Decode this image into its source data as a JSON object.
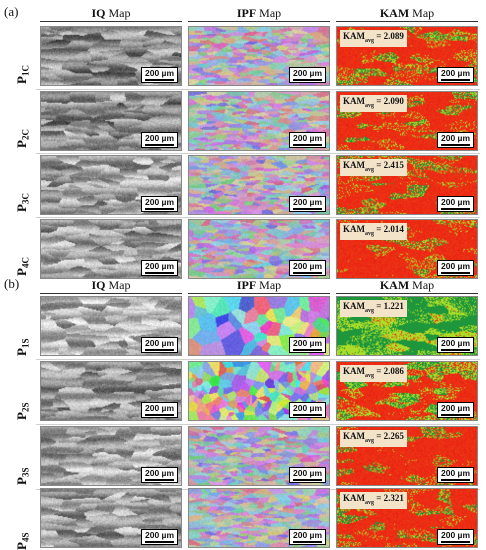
{
  "panels": [
    {
      "label": "(a)",
      "headers": [
        {
          "bold": "IQ",
          "rest": " Map"
        },
        {
          "bold": "IPF",
          "rest": " Map"
        },
        {
          "bold": "KAM",
          "rest": " Map"
        }
      ],
      "rows": [
        {
          "sample": "P",
          "sample_sub": "1C",
          "kam_prefix": "KAM",
          "kam_sub": "avg",
          "kam_value": " = 2.089",
          "scale": "200 µm"
        },
        {
          "sample": "P",
          "sample_sub": "2C",
          "kam_prefix": "KAM",
          "kam_sub": "avg",
          "kam_value": " = 2.090",
          "scale": "200 µm"
        },
        {
          "sample": "P",
          "sample_sub": "3C",
          "kam_prefix": "KAM",
          "kam_sub": "avg",
          "kam_value": " = 2.415",
          "scale": "200 µm"
        },
        {
          "sample": "P",
          "sample_sub": "4C",
          "kam_prefix": "KAM",
          "kam_sub": "avg",
          "kam_value": " = 2.014",
          "scale": "200 µm"
        }
      ]
    },
    {
      "label": "(b)",
      "headers": [
        {
          "bold": "IQ",
          "rest": " Map"
        },
        {
          "bold": "IPF",
          "rest": " Map"
        },
        {
          "bold": "KAM",
          "rest": " Map"
        }
      ],
      "rows": [
        {
          "sample": "P",
          "sample_sub": "1S",
          "kam_prefix": "KAM",
          "kam_sub": "avg",
          "kam_value": " = 1.221",
          "scale": "200 µm"
        },
        {
          "sample": "P",
          "sample_sub": "2S",
          "kam_prefix": "KAM",
          "kam_sub": "avg",
          "kam_value": " = 2.086",
          "scale": "200 µm"
        },
        {
          "sample": "P",
          "sample_sub": "3S",
          "kam_prefix": "KAM",
          "kam_sub": "avg",
          "kam_value": " = 2.265",
          "scale": "200 µm"
        },
        {
          "sample": "P",
          "sample_sub": "4S",
          "kam_prefix": "KAM",
          "kam_sub": "avg",
          "kam_value": " = 2.321",
          "scale": "200 µm"
        }
      ]
    }
  ]
}
